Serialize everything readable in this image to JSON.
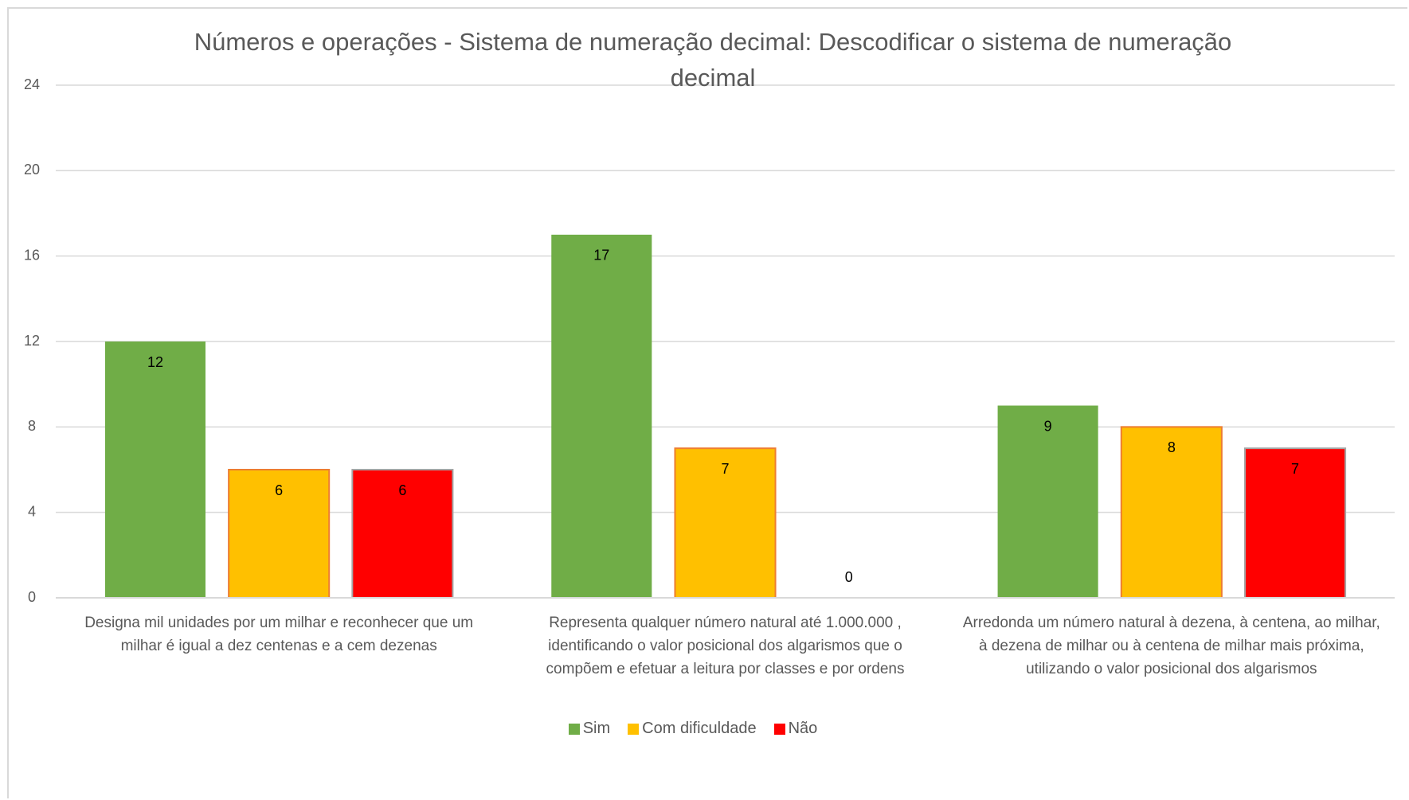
{
  "chart_data": {
    "type": "bar",
    "title": "Números e operações - Sistema de numeração decimal: Descodificar o sistema de numeração decimal",
    "categories": [
      "Designa mil unidades por um milhar e reconhecer que um milhar é igual a dez centenas e a cem dezenas",
      "Representa qualquer número natural até 1.000.000 , identificando o valor posicional dos algarismos que o compõem e efetuar a leitura por classes e por ordens",
      "Arredonda um número natural à dezena, à centena, ao milhar, à dezena de milhar ou à centena de milhar mais próxima, utilizando o valor posicional dos algarismos"
    ],
    "series": [
      {
        "name": "Sim",
        "color": "#70ad47",
        "values": [
          12,
          17,
          9
        ]
      },
      {
        "name": "Com dificuldade",
        "color": "#ffc000",
        "values": [
          6,
          7,
          8
        ]
      },
      {
        "name": "Não",
        "color": "#ff0000",
        "values": [
          6,
          0,
          7
        ]
      }
    ],
    "ylim": [
      0,
      24
    ],
    "yticks": [
      0,
      4,
      8,
      12,
      16,
      20,
      24
    ],
    "grid": true,
    "legend": "bottom"
  }
}
